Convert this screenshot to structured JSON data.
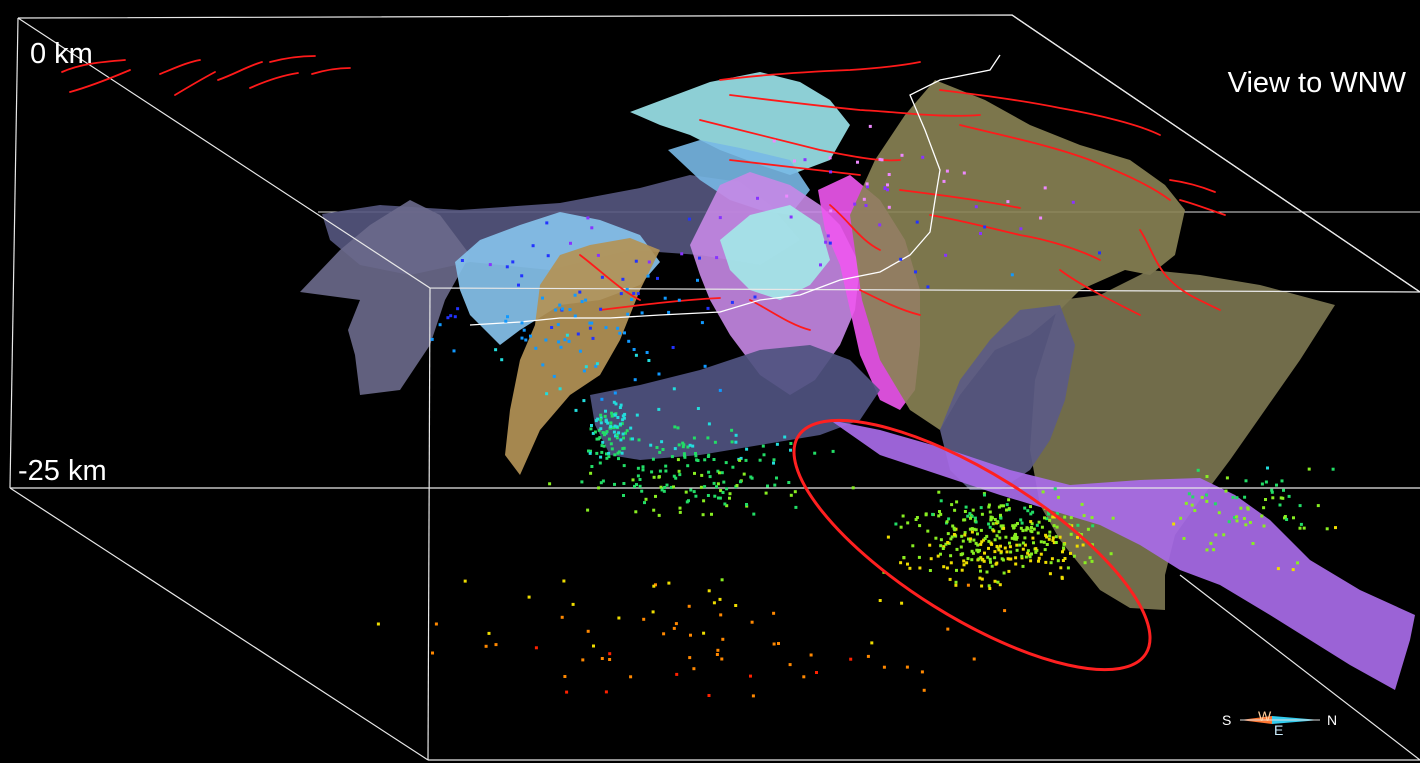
{
  "labels": {
    "depth_top": "0 km",
    "depth_bottom": "-25 km",
    "view_direction": "View to WNW"
  },
  "compass": {
    "south": "S",
    "north": "N",
    "west": "W",
    "east": "E"
  },
  "colors": {
    "background": "#000000",
    "box_edges": "#ffffff",
    "fault_traces": "#ff1a1a",
    "highlight_ellipse": "#ff2020",
    "profile_line": "#ffffff",
    "surface_olive": "#8c8456",
    "surface_purple": "#a86ae8",
    "surface_slate": "#5a5c86",
    "surface_lightblue": "#87c3ec",
    "surface_cyan": "#9be8ee",
    "surface_magenta": "#ee5cee",
    "surface_lavender": "#c88ae8",
    "surface_tan": "#b4955a",
    "hypocenter_scale": [
      "#ffffff",
      "#ee88ff",
      "#8833ff",
      "#2233ff",
      "#1199ff",
      "#22dddd",
      "#22dd66",
      "#88ee22",
      "#eedd00",
      "#ff8800",
      "#ff2200"
    ]
  }
}
